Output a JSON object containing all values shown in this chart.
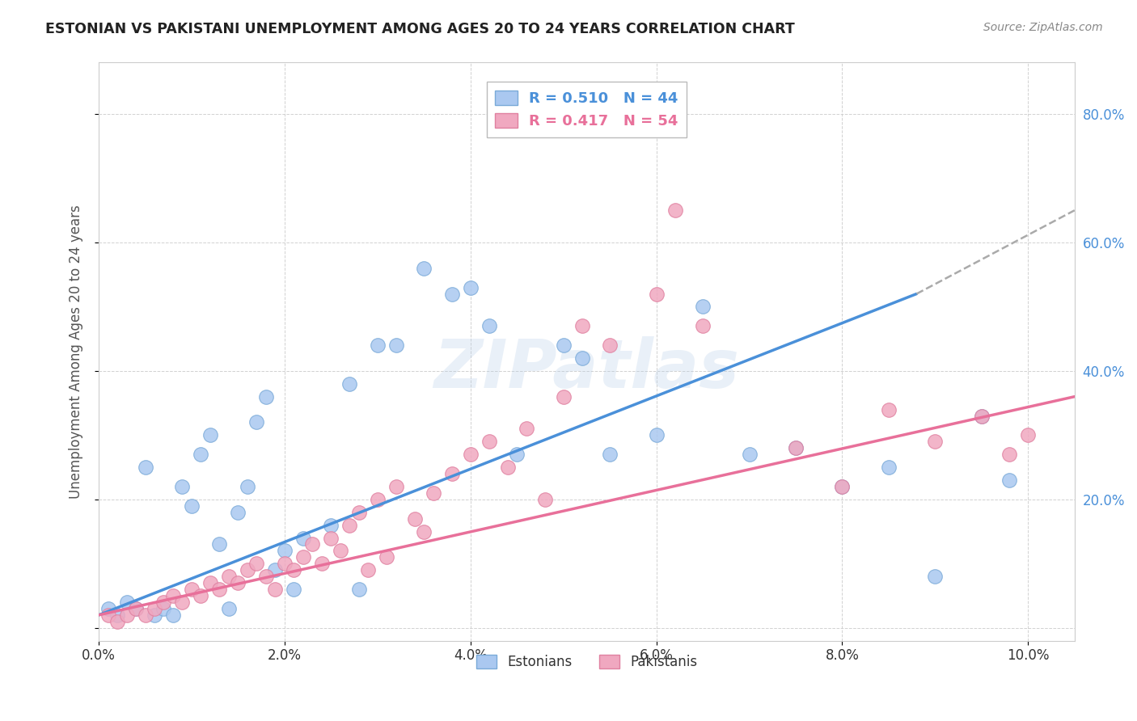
{
  "title": "ESTONIAN VS PAKISTANI UNEMPLOYMENT AMONG AGES 20 TO 24 YEARS CORRELATION CHART",
  "source": "Source: ZipAtlas.com",
  "ylabel": "Unemployment Among Ages 20 to 24 years",
  "xlim": [
    0.0,
    0.105
  ],
  "ylim": [
    -0.02,
    0.88
  ],
  "xticks": [
    0.0,
    0.02,
    0.04,
    0.06,
    0.08,
    0.1
  ],
  "xticklabels": [
    "0.0%",
    "2.0%",
    "4.0%",
    "6.0%",
    "8.0%",
    "10.0%"
  ],
  "yticks": [
    0.0,
    0.2,
    0.4,
    0.6,
    0.8
  ],
  "yticklabels": [
    "",
    "20.0%",
    "40.0%",
    "60.0%",
    "80.0%"
  ],
  "background_color": "#ffffff",
  "grid_color": "#cccccc",
  "watermark": "ZIPatlas",
  "estonian_color": "#aac8f0",
  "pakistani_color": "#f0a8c0",
  "estonian_edge": "#7aaad8",
  "pakistani_edge": "#e080a0",
  "blue_line_color": "#4a90d9",
  "pink_line_color": "#e8709a",
  "dash_line_color": "#aaaaaa",
  "estonian_scatter_x": [
    0.001,
    0.002,
    0.003,
    0.004,
    0.005,
    0.006,
    0.007,
    0.008,
    0.009,
    0.01,
    0.011,
    0.012,
    0.013,
    0.015,
    0.016,
    0.017,
    0.018,
    0.019,
    0.02,
    0.021,
    0.022,
    0.025,
    0.027,
    0.03,
    0.032,
    0.035,
    0.038,
    0.04,
    0.042,
    0.05,
    0.055,
    0.06,
    0.065,
    0.07,
    0.075,
    0.08,
    0.085,
    0.09,
    0.095,
    0.098,
    0.014,
    0.028,
    0.045,
    0.052
  ],
  "estonian_scatter_y": [
    0.03,
    0.02,
    0.04,
    0.03,
    0.25,
    0.02,
    0.03,
    0.02,
    0.22,
    0.19,
    0.27,
    0.3,
    0.13,
    0.18,
    0.22,
    0.32,
    0.36,
    0.09,
    0.12,
    0.06,
    0.14,
    0.16,
    0.38,
    0.44,
    0.44,
    0.56,
    0.52,
    0.53,
    0.47,
    0.44,
    0.27,
    0.3,
    0.5,
    0.27,
    0.28,
    0.22,
    0.25,
    0.08,
    0.33,
    0.23,
    0.03,
    0.06,
    0.27,
    0.42
  ],
  "pakistani_scatter_x": [
    0.001,
    0.002,
    0.003,
    0.004,
    0.005,
    0.006,
    0.007,
    0.008,
    0.009,
    0.01,
    0.011,
    0.012,
    0.013,
    0.014,
    0.015,
    0.016,
    0.017,
    0.018,
    0.019,
    0.02,
    0.021,
    0.022,
    0.023,
    0.024,
    0.025,
    0.026,
    0.027,
    0.028,
    0.03,
    0.032,
    0.034,
    0.036,
    0.038,
    0.04,
    0.042,
    0.044,
    0.046,
    0.05,
    0.055,
    0.06,
    0.065,
    0.08,
    0.085,
    0.09,
    0.095,
    0.098,
    0.1,
    0.035,
    0.029,
    0.031,
    0.048,
    0.052,
    0.062,
    0.075
  ],
  "pakistani_scatter_y": [
    0.02,
    0.01,
    0.02,
    0.03,
    0.02,
    0.03,
    0.04,
    0.05,
    0.04,
    0.06,
    0.05,
    0.07,
    0.06,
    0.08,
    0.07,
    0.09,
    0.1,
    0.08,
    0.06,
    0.1,
    0.09,
    0.11,
    0.13,
    0.1,
    0.14,
    0.12,
    0.16,
    0.18,
    0.2,
    0.22,
    0.17,
    0.21,
    0.24,
    0.27,
    0.29,
    0.25,
    0.31,
    0.36,
    0.44,
    0.52,
    0.47,
    0.22,
    0.34,
    0.29,
    0.33,
    0.27,
    0.3,
    0.15,
    0.09,
    0.11,
    0.2,
    0.47,
    0.65,
    0.28
  ],
  "blue_line_x": [
    0.0,
    0.088
  ],
  "blue_line_y": [
    0.02,
    0.52
  ],
  "pink_line_x": [
    0.0,
    0.105
  ],
  "pink_line_y": [
    0.02,
    0.36
  ],
  "dash_line_x": [
    0.088,
    0.105
  ],
  "dash_line_y": [
    0.52,
    0.65
  ],
  "legend_label_blue": "R = 0.510   N = 44",
  "legend_label_pink": "R = 0.417   N = 54",
  "legend_color_blue": "#aac8f0",
  "legend_color_pink": "#f0a8c0",
  "legend_edge_blue": "#7aaad8",
  "legend_edge_pink": "#e080a0",
  "text_blue": "#4a90d9",
  "text_pink": "#e8709a",
  "title_color": "#222222",
  "ylabel_color": "#555555",
  "ytick_color": "#4a90d9",
  "xtick_color": "#333333"
}
